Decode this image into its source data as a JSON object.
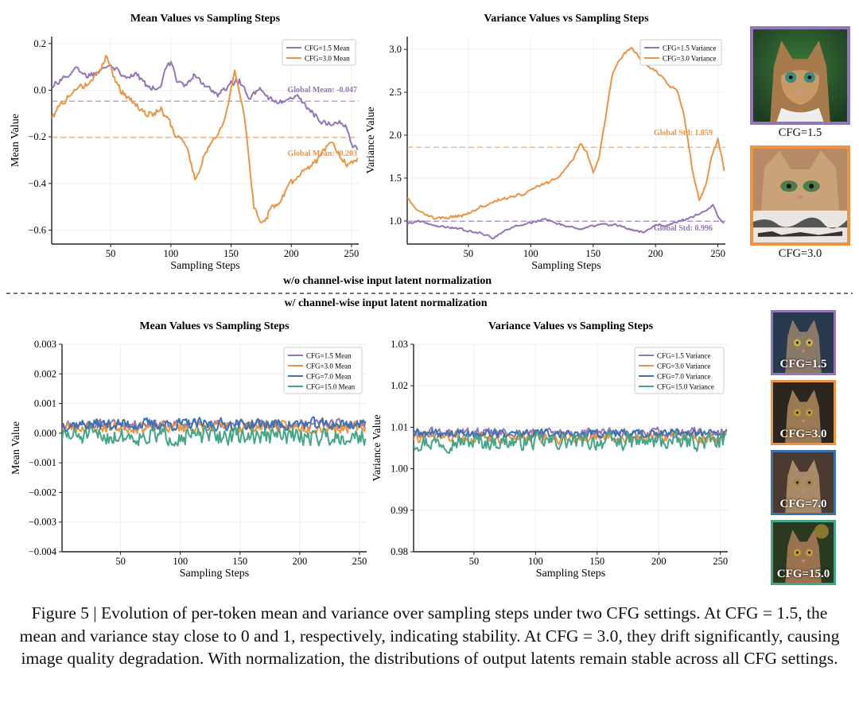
{
  "figure": {
    "section_without": "w/o channel-wise input latent normalization",
    "section_with": "w/ channel-wise input latent normalization",
    "caption": "Figure 5 | Evolution of per-token mean and variance over sampling steps under two CFG settings. At CFG = 1.5, the mean and variance stay close to 0 and 1, respectively, indicating stability. At CFG = 3.0, they drift significantly, causing image quality degradation. With normalization, the distributions of output latents remain stable across all CFG settings."
  },
  "colors": {
    "cfg15": "#9475b5",
    "cfg30": "#ec9444",
    "cfg70": "#3d72ad",
    "cfg150": "#45a588"
  },
  "thumbnails": {
    "top": [
      {
        "label": "CFG=1.5",
        "icon": "cat-portrait-icon"
      },
      {
        "label": "CFG=3.0",
        "icon": "cat-degraded-icon"
      }
    ],
    "bottom": [
      {
        "label": "CFG=1.5",
        "icon": "cat-portrait-icon"
      },
      {
        "label": "CFG=3.0",
        "icon": "cat-portrait-icon"
      },
      {
        "label": "CFG=7.0",
        "icon": "cat-portrait-icon"
      },
      {
        "label": "CFG=15.0",
        "icon": "cat-portrait-icon"
      }
    ]
  },
  "chart_data": [
    {
      "id": "top-mean",
      "type": "line",
      "title": "Mean Values vs Sampling Steps",
      "xlabel": "Sampling Steps",
      "ylabel": "Mean Value",
      "xlim": [
        1,
        256
      ],
      "ylim": [
        -0.66,
        0.23
      ],
      "xticks": [
        50,
        100,
        150,
        200,
        250
      ],
      "yticks": [
        -0.6,
        -0.4,
        -0.2,
        0.0,
        0.2
      ],
      "ytick_labels": [
        "−0.6",
        "−0.4",
        "−0.2",
        "0.0",
        "0.2"
      ],
      "legend": "top-right",
      "series": [
        {
          "name": "CFG=1.5 Mean",
          "color_key": "cfg15",
          "noise": 0.018,
          "keyframes": [
            [
              1,
              0.02
            ],
            [
              10,
              0.05
            ],
            [
              20,
              0.09
            ],
            [
              30,
              0.06
            ],
            [
              40,
              0.08
            ],
            [
              48,
              0.12
            ],
            [
              55,
              0.09
            ],
            [
              62,
              0.06
            ],
            [
              70,
              0.07
            ],
            [
              80,
              0.02
            ],
            [
              90,
              0.0
            ],
            [
              96,
              0.09
            ],
            [
              100,
              0.12
            ],
            [
              105,
              0.05
            ],
            [
              112,
              0.02
            ],
            [
              120,
              0.07
            ],
            [
              130,
              0.01
            ],
            [
              140,
              -0.02
            ],
            [
              150,
              0.03
            ],
            [
              157,
              0.04
            ],
            [
              165,
              -0.03
            ],
            [
              175,
              0.0
            ],
            [
              185,
              -0.05
            ],
            [
              195,
              -0.05
            ],
            [
              205,
              -0.03
            ],
            [
              215,
              -0.08
            ],
            [
              222,
              -0.12
            ],
            [
              230,
              -0.15
            ],
            [
              238,
              -0.13
            ],
            [
              245,
              -0.15
            ],
            [
              251,
              -0.25
            ]
          ]
        },
        {
          "name": "CFG=3.0 Mean",
          "color_key": "cfg30",
          "noise": 0.02,
          "keyframes": [
            [
              1,
              -0.12
            ],
            [
              8,
              -0.07
            ],
            [
              15,
              -0.02
            ],
            [
              22,
              0.0
            ],
            [
              30,
              0.03
            ],
            [
              40,
              0.08
            ],
            [
              47,
              0.15
            ],
            [
              52,
              0.07
            ],
            [
              58,
              0.0
            ],
            [
              64,
              -0.03
            ],
            [
              70,
              -0.06
            ],
            [
              78,
              -0.1
            ],
            [
              85,
              -0.1
            ],
            [
              92,
              -0.08
            ],
            [
              98,
              -0.13
            ],
            [
              104,
              -0.2
            ],
            [
              110,
              -0.22
            ],
            [
              115,
              -0.28
            ],
            [
              120,
              -0.38
            ],
            [
              126,
              -0.3
            ],
            [
              132,
              -0.24
            ],
            [
              138,
              -0.2
            ],
            [
              143,
              -0.15
            ],
            [
              148,
              -0.05
            ],
            [
              153,
              0.08
            ],
            [
              157,
              0.0
            ],
            [
              161,
              -0.1
            ],
            [
              165,
              -0.3
            ],
            [
              169,
              -0.5
            ],
            [
              173,
              -0.55
            ],
            [
              178,
              -0.57
            ],
            [
              183,
              -0.5
            ],
            [
              188,
              -0.5
            ],
            [
              193,
              -0.46
            ],
            [
              200,
              -0.4
            ],
            [
              208,
              -0.35
            ],
            [
              215,
              -0.33
            ],
            [
              222,
              -0.3
            ],
            [
              228,
              -0.25
            ],
            [
              235,
              -0.22
            ],
            [
              240,
              -0.27
            ],
            [
              246,
              -0.32
            ],
            [
              251,
              -0.3
            ]
          ]
        }
      ],
      "hlines": [
        {
          "y": -0.047,
          "color_key": "cfg15",
          "label": "Global Mean: -0.047"
        },
        {
          "y": -0.203,
          "color_key": "cfg30",
          "label": "Global Mean: -0.203"
        }
      ]
    },
    {
      "id": "top-var",
      "type": "line",
      "title": "Variance Values vs Sampling Steps",
      "xlabel": "Sampling Steps",
      "ylabel": "Variance Value",
      "xlim": [
        1,
        256
      ],
      "ylim": [
        0.73,
        3.15
      ],
      "xticks": [
        50,
        100,
        150,
        200,
        250
      ],
      "yticks": [
        1.0,
        1.5,
        2.0,
        2.5,
        3.0
      ],
      "ytick_labels": [
        "1.0",
        "1.5",
        "2.0",
        "2.5",
        "3.0"
      ],
      "legend": "top-right",
      "series": [
        {
          "name": "CFG=1.5 Variance",
          "color_key": "cfg15",
          "noise": 0.018,
          "keyframes": [
            [
              1,
              0.97
            ],
            [
              10,
              1.0
            ],
            [
              20,
              0.96
            ],
            [
              30,
              0.93
            ],
            [
              40,
              0.92
            ],
            [
              50,
              0.88
            ],
            [
              60,
              0.86
            ],
            [
              70,
              0.8
            ],
            [
              76,
              0.86
            ],
            [
              85,
              0.93
            ],
            [
              95,
              0.96
            ],
            [
              100,
              0.98
            ],
            [
              110,
              1.02
            ],
            [
              120,
              0.98
            ],
            [
              130,
              0.93
            ],
            [
              140,
              0.9
            ],
            [
              150,
              0.94
            ],
            [
              160,
              0.96
            ],
            [
              170,
              0.95
            ],
            [
              180,
              0.9
            ],
            [
              190,
              0.87
            ],
            [
              200,
              0.96
            ],
            [
              210,
              0.95
            ],
            [
              220,
              1.0
            ],
            [
              230,
              1.05
            ],
            [
              240,
              1.12
            ],
            [
              246,
              1.18
            ],
            [
              251,
              1.03
            ],
            [
              254,
              0.98
            ]
          ]
        },
        {
          "name": "CFG=3.0 Variance",
          "color_key": "cfg30",
          "noise": 0.025,
          "keyframes": [
            [
              1,
              1.28
            ],
            [
              8,
              1.15
            ],
            [
              15,
              1.08
            ],
            [
              25,
              1.02
            ],
            [
              35,
              1.05
            ],
            [
              45,
              1.06
            ],
            [
              55,
              1.12
            ],
            [
              65,
              1.2
            ],
            [
              75,
              1.25
            ],
            [
              85,
              1.28
            ],
            [
              95,
              1.32
            ],
            [
              105,
              1.4
            ],
            [
              115,
              1.45
            ],
            [
              125,
              1.55
            ],
            [
              130,
              1.65
            ],
            [
              135,
              1.75
            ],
            [
              140,
              1.9
            ],
            [
              145,
              1.8
            ],
            [
              150,
              1.56
            ],
            [
              155,
              1.75
            ],
            [
              160,
              2.2
            ],
            [
              165,
              2.7
            ],
            [
              170,
              2.85
            ],
            [
              175,
              2.95
            ],
            [
              180,
              3.02
            ],
            [
              185,
              2.95
            ],
            [
              190,
              2.85
            ],
            [
              200,
              2.75
            ],
            [
              210,
              2.6
            ],
            [
              218,
              2.5
            ],
            [
              222,
              2.3
            ],
            [
              226,
              1.95
            ],
            [
              230,
              1.55
            ],
            [
              235,
              1.25
            ],
            [
              240,
              1.4
            ],
            [
              245,
              1.75
            ],
            [
              250,
              1.95
            ],
            [
              253,
              1.75
            ],
            [
              256,
              1.52
            ]
          ]
        }
      ],
      "hlines": [
        {
          "y": 0.996,
          "color_key": "cfg15",
          "label": "Global Std: 0.996"
        },
        {
          "y": 1.859,
          "color_key": "cfg30",
          "label": "Global Std: 1.859"
        }
      ]
    },
    {
      "id": "bottom-mean",
      "type": "line",
      "title": "Mean Values vs Sampling Steps",
      "xlabel": "Sampling Steps",
      "ylabel": "Mean Value",
      "xlim": [
        1,
        256
      ],
      "ylim": [
        -0.004,
        0.003
      ],
      "xticks": [
        50,
        100,
        150,
        200,
        250
      ],
      "yticks": [
        -0.004,
        -0.003,
        -0.002,
        -0.001,
        0.0,
        0.001,
        0.002,
        0.003
      ],
      "ytick_labels": [
        "−0.004",
        "−0.003",
        "−0.002",
        "−0.001",
        "0.000",
        "0.001",
        "0.002",
        "0.003"
      ],
      "legend": "top-right",
      "series": [
        {
          "name": "CFG=1.5 Mean",
          "color_key": "cfg15",
          "base": 0.0003,
          "noise": 0.00022,
          "seed": 11
        },
        {
          "name": "CFG=3.0 Mean",
          "color_key": "cfg30",
          "base": 0.0002,
          "noise": 0.00026,
          "seed": 23
        },
        {
          "name": "CFG=7.0 Mean",
          "color_key": "cfg70",
          "base": 0.0003,
          "noise": 0.00028,
          "seed": 37
        },
        {
          "name": "CFG=15.0 Mean",
          "color_key": "cfg150",
          "base": -0.0001,
          "noise": 0.00042,
          "seed": 51
        }
      ]
    },
    {
      "id": "bottom-var",
      "type": "line",
      "title": "Variance Values vs Sampling Steps",
      "xlabel": "Sampling Steps",
      "ylabel": "Variance Value",
      "xlim": [
        1,
        256
      ],
      "ylim": [
        0.98,
        1.03
      ],
      "xticks": [
        50,
        100,
        150,
        200,
        250
      ],
      "yticks": [
        0.98,
        0.99,
        1.0,
        1.01,
        1.02,
        1.03
      ],
      "ytick_labels": [
        "0.98",
        "0.99",
        "1.00",
        "1.01",
        "1.02",
        "1.03"
      ],
      "legend": "top-right",
      "series": [
        {
          "name": "CFG=1.5 Variance",
          "color_key": "cfg15",
          "base": 1.0085,
          "noise": 0.0018,
          "seed": 61
        },
        {
          "name": "CFG=3.0 Variance",
          "color_key": "cfg30",
          "base": 1.0075,
          "noise": 0.0019,
          "seed": 73
        },
        {
          "name": "CFG=7.0 Variance",
          "color_key": "cfg70",
          "base": 1.0085,
          "noise": 0.0015,
          "seed": 89
        },
        {
          "name": "CFG=15.0 Variance",
          "color_key": "cfg150",
          "base": 1.0065,
          "noise": 0.0028,
          "seed": 97
        }
      ]
    }
  ]
}
